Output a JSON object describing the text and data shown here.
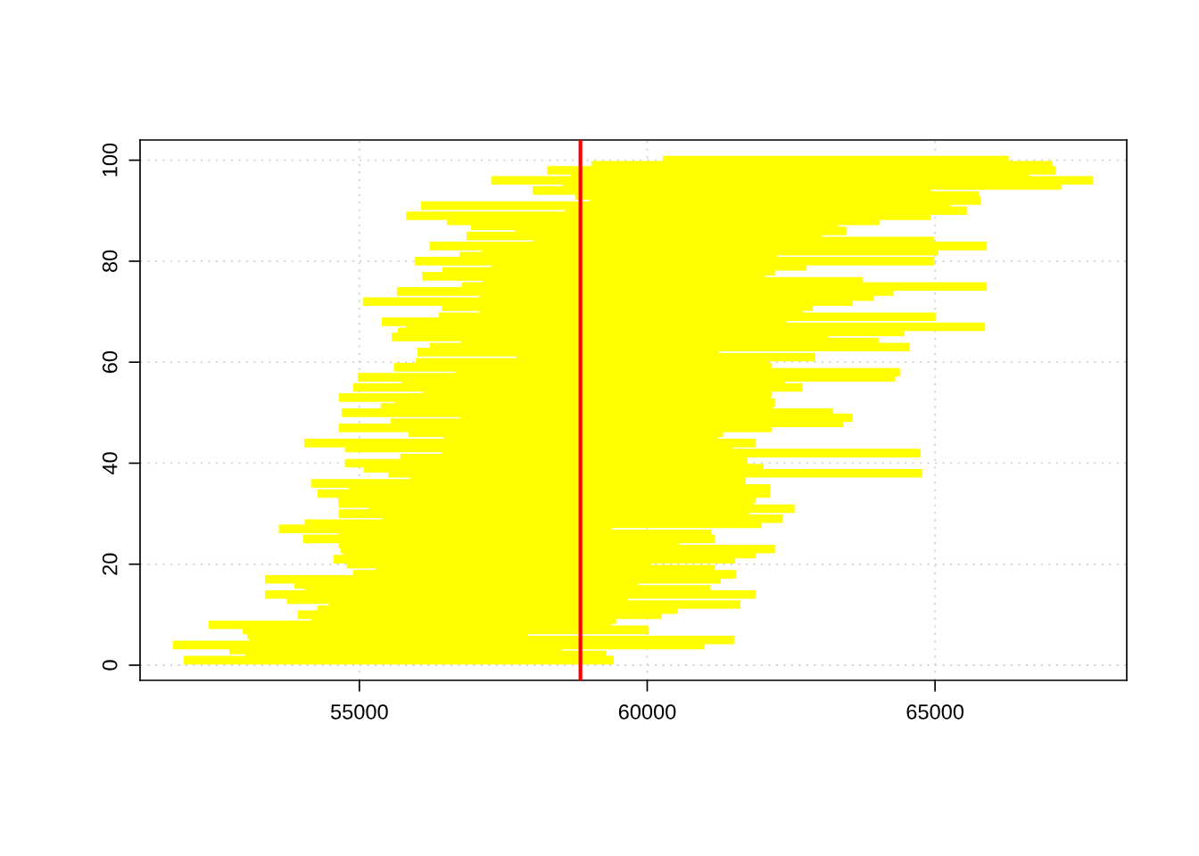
{
  "chart_data": {
    "type": "bar",
    "orientation": "horizontal",
    "color": "#ffff00",
    "x": [
      1,
      2,
      3,
      4,
      5,
      6,
      7,
      8,
      9,
      10,
      11,
      12,
      13,
      14,
      15,
      16,
      17,
      18,
      19,
      20,
      21,
      22,
      23,
      24,
      25,
      26,
      27,
      28,
      29,
      30,
      31,
      32,
      33,
      34,
      35,
      36,
      37,
      38,
      39,
      40,
      41,
      42,
      43,
      44,
      45,
      46,
      47,
      48,
      49,
      50,
      51,
      52,
      53,
      54,
      55,
      56,
      57,
      58,
      59,
      60,
      61,
      62,
      63,
      64,
      65,
      66,
      67,
      68,
      69,
      70,
      71,
      72,
      73,
      74,
      75,
      76,
      77,
      78,
      79,
      80,
      81,
      82,
      83,
      84,
      85,
      86,
      87,
      88,
      89,
      90,
      91,
      92,
      93,
      94,
      95,
      96,
      97,
      98,
      99,
      100
    ],
    "base": [
      51950,
      53020,
      52740,
      51760,
      53090,
      53050,
      52970,
      52380,
      54160,
      53930,
      54270,
      54470,
      53740,
      53360,
      54050,
      53870,
      53360,
      54890,
      55280,
      54780,
      54550,
      54720,
      54670,
      54640,
      54020,
      54640,
      53600,
      54050,
      55400,
      54640,
      55160,
      54640,
      54630,
      54270,
      54810,
      54160,
      55880,
      55500,
      55080,
      54750,
      55710,
      56430,
      54750,
      54040,
      56460,
      55850,
      54640,
      55540,
      56750,
      54690,
      55370,
      55620,
      54640,
      56100,
      54890,
      55740,
      54970,
      56670,
      55600,
      55980,
      57730,
      56010,
      56220,
      56770,
      55560,
      55670,
      55810,
      55390,
      56380,
      57080,
      56430,
      55060,
      57080,
      55650,
      56780,
      57140,
      56090,
      56440,
      57290,
      55960,
      56740,
      57120,
      56220,
      58020,
      56860,
      57700,
      56940,
      56520,
      55810,
      58570,
      56070,
      59010,
      58750,
      58010,
      58530,
      57290,
      58670,
      58260,
      59030,
      60270
    ],
    "values": [
      7470,
      6270,
      5780,
      9230,
      8420,
      4880,
      7050,
      6990,
      5300,
      6310,
      6260,
      7150,
      5930,
      8520,
      7050,
      5970,
      7920,
      6650,
      5890,
      5290,
      6980,
      7160,
      7550,
      5910,
      7150,
      6470,
      5790,
      7930,
      6950,
      7130,
      7400,
      7210,
      7250,
      7860,
      7320,
      7550,
      5830,
      9280,
      6940,
      6990,
      6030,
      8320,
      6740,
      7840,
      4770,
      5470,
      7520,
      7860,
      6820,
      8540,
      6820,
      6600,
      7510,
      6060,
      7810,
      6650,
      9330,
      7720,
      6560,
      6120,
      5190,
      5240,
      8340,
      7250,
      7590,
      8800,
      10060,
      7020,
      8630,
      5620,
      6440,
      8510,
      6860,
      8630,
      9120,
      6600,
      5950,
      5780,
      5480,
      9020,
      5510,
      7940,
      9680,
      6960,
      6180,
      5760,
      6370,
      7520,
      9110,
      6990,
      9190,
      6780,
      7010,
      6910,
      8670,
      10450,
      7960,
      8830,
      8010,
      6010
    ],
    "xlim": [
      51190,
      68330
    ],
    "xticks": [
      55000,
      60000,
      65000
    ],
    "ylim": [
      -3,
      104
    ],
    "yticks": [
      0,
      20,
      40,
      60,
      80,
      100
    ],
    "grid": true,
    "ref_lines": [
      {
        "axis": "x",
        "value": 58840,
        "color": "#ff0000"
      }
    ]
  }
}
